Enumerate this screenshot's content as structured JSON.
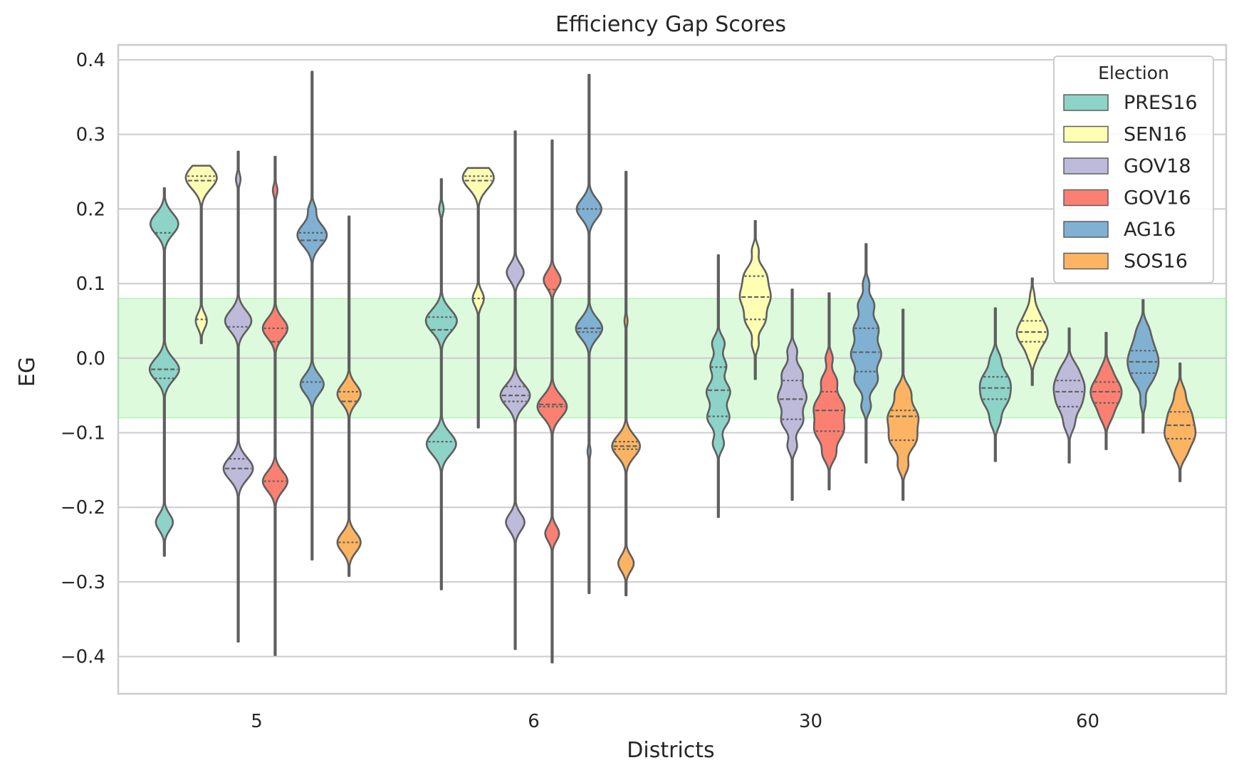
{
  "chart_data": {
    "type": "violin",
    "title": "Efficiency Gap Scores",
    "xlabel": "Districts",
    "ylabel": "EG",
    "categories": [
      "5",
      "6",
      "30",
      "60"
    ],
    "ylim": [
      -0.45,
      0.42
    ],
    "yticks": [
      0.4,
      0.3,
      0.2,
      0.1,
      0.0,
      -0.1,
      -0.2,
      -0.3,
      -0.4
    ],
    "ytick_labels": [
      "0.4",
      "0.3",
      "0.2",
      "0.1",
      "0.0",
      "−0.1",
      "−0.2",
      "−0.3",
      "−0.4"
    ],
    "grid": true,
    "band": {
      "from": -0.08,
      "to": 0.08,
      "color": "#90ee90"
    },
    "legend": {
      "title": "Election",
      "placement": "top-right"
    },
    "series": [
      {
        "name": "PRES16",
        "color": "#8dd3c7",
        "data": [
          {
            "min": -0.265,
            "max": 0.228,
            "modes": [
              [
                0.18,
                0.9
              ],
              [
                -0.015,
                0.95
              ],
              [
                -0.22,
                0.55
              ]
            ],
            "quartiles": [
              -0.027,
              -0.015,
              0.168
            ]
          },
          {
            "min": -0.31,
            "max": 0.24,
            "modes": [
              [
                0.05,
                1.0
              ],
              [
                -0.115,
                0.95
              ],
              [
                0.2,
                0.15
              ]
            ],
            "quartiles": [
              -0.112,
              0.038,
              0.055
            ]
          },
          {
            "min": -0.213,
            "max": 0.138,
            "modes": [
              [
                0.02,
                0.4
              ],
              [
                -0.01,
                0.5
              ],
              [
                -0.045,
                0.75
              ],
              [
                -0.08,
                0.7
              ],
              [
                -0.115,
                0.35
              ]
            ],
            "quartiles": [
              -0.078,
              -0.043,
              -0.012
            ]
          },
          {
            "min": -0.138,
            "max": 0.067,
            "modes": [
              [
                0.0,
                0.4
              ],
              [
                -0.025,
                0.75
              ],
              [
                -0.042,
                0.9
              ],
              [
                -0.06,
                0.7
              ],
              [
                -0.085,
                0.4
              ]
            ],
            "quartiles": [
              -0.055,
              -0.04,
              -0.025
            ]
          }
        ]
      },
      {
        "name": "SEN16",
        "color": "#ffffb3",
        "data": [
          {
            "min": 0.02,
            "max": 0.258,
            "modes": [
              [
                0.242,
                1.25
              ],
              [
                0.05,
                0.45
              ]
            ],
            "quartiles": [
              0.052,
              0.238,
              0.244
            ]
          },
          {
            "min": -0.093,
            "max": 0.255,
            "modes": [
              [
                0.242,
                1.25
              ],
              [
                0.08,
                0.45
              ]
            ],
            "quartiles": [
              0.08,
              0.238,
              0.244
            ]
          },
          {
            "min": -0.028,
            "max": 0.184,
            "modes": [
              [
                0.145,
                0.25
              ],
              [
                0.112,
                0.75
              ],
              [
                0.082,
                1.15
              ],
              [
                0.05,
                0.7
              ],
              [
                0.018,
                0.25
              ]
            ],
            "quartiles": [
              0.052,
              0.082,
              0.11
            ]
          },
          {
            "min": -0.036,
            "max": 0.107,
            "modes": [
              [
                0.085,
                0.25
              ],
              [
                0.062,
                0.6
              ],
              [
                0.04,
                0.85
              ],
              [
                0.035,
                1.1
              ],
              [
                0.02,
                0.8
              ],
              [
                0.0,
                0.35
              ]
            ],
            "quartiles": [
              0.022,
              0.035,
              0.05
            ]
          }
        ]
      },
      {
        "name": "GOV18",
        "color": "#bebada",
        "data": [
          {
            "min": -0.38,
            "max": 0.277,
            "modes": [
              [
                0.05,
                0.85
              ],
              [
                -0.148,
                0.95
              ],
              [
                0.24,
                0.15
              ]
            ],
            "quartiles": [
              -0.135,
              -0.148,
              0.042
            ]
          },
          {
            "min": -0.39,
            "max": 0.304,
            "modes": [
              [
                0.115,
                0.55
              ],
              [
                -0.05,
                0.95
              ],
              [
                -0.22,
                0.6
              ]
            ],
            "quartiles": [
              -0.058,
              -0.05,
              -0.038
            ]
          },
          {
            "min": -0.19,
            "max": 0.092,
            "modes": [
              [
                0.01,
                0.3
              ],
              [
                -0.02,
                0.6
              ],
              [
                -0.052,
                0.9
              ],
              [
                -0.085,
                0.65
              ],
              [
                -0.118,
                0.3
              ]
            ],
            "quartiles": [
              -0.082,
              -0.055,
              -0.03
            ]
          },
          {
            "min": -0.14,
            "max": 0.04,
            "modes": [
              [
                -0.012,
                0.5
              ],
              [
                -0.03,
                0.7
              ],
              [
                -0.045,
                0.9
              ],
              [
                -0.065,
                0.75
              ],
              [
                -0.09,
                0.4
              ]
            ],
            "quartiles": [
              -0.065,
              -0.045,
              -0.03
            ]
          }
        ]
      },
      {
        "name": "GOV16",
        "color": "#fb8072",
        "data": [
          {
            "min": -0.398,
            "max": 0.27,
            "modes": [
              [
                0.04,
                0.8
              ],
              [
                -0.165,
                0.8
              ],
              [
                0.225,
                0.15
              ]
            ],
            "quartiles": [
              -0.165,
              0.022,
              0.04
            ]
          },
          {
            "min": -0.408,
            "max": 0.292,
            "modes": [
              [
                0.105,
                0.55
              ],
              [
                -0.065,
                0.95
              ],
              [
                -0.235,
                0.45
              ]
            ],
            "quartiles": [
              -0.065,
              -0.062,
              0.092
            ]
          },
          {
            "min": -0.176,
            "max": 0.087,
            "modes": [
              [
                0.0,
                0.25
              ],
              [
                -0.03,
                0.5
              ],
              [
                -0.065,
                1.0
              ],
              [
                -0.098,
                0.95
              ],
              [
                -0.13,
                0.4
              ]
            ],
            "quartiles": [
              -0.098,
              -0.07,
              -0.045
            ]
          },
          {
            "min": -0.122,
            "max": 0.034,
            "modes": [
              [
                -0.015,
                0.45
              ],
              [
                -0.035,
                0.7
              ],
              [
                -0.045,
                0.9
              ],
              [
                -0.06,
                0.85
              ],
              [
                -0.08,
                0.4
              ]
            ],
            "quartiles": [
              -0.06,
              -0.045,
              -0.032
            ]
          }
        ]
      },
      {
        "name": "AG16",
        "color": "#80b1d3",
        "data": [
          {
            "min": -0.27,
            "max": 0.384,
            "modes": [
              [
                0.165,
                0.95
              ],
              [
                -0.035,
                0.75
              ],
              [
                0.2,
                0.2
              ]
            ],
            "quartiles": [
              -0.032,
              0.158,
              0.168
            ]
          },
          {
            "min": -0.315,
            "max": 0.38,
            "modes": [
              [
                0.2,
                0.8
              ],
              [
                0.04,
                0.85
              ],
              [
                -0.125,
                0.1
              ]
            ],
            "quartiles": [
              0.035,
              0.04,
              0.2
            ]
          },
          {
            "min": -0.14,
            "max": 0.153,
            "modes": [
              [
                0.1,
                0.2
              ],
              [
                0.072,
                0.5
              ],
              [
                0.04,
                0.75
              ],
              [
                0.005,
                0.95
              ],
              [
                -0.03,
                0.7
              ],
              [
                -0.065,
                0.3
              ]
            ],
            "quartiles": [
              -0.018,
              0.008,
              0.04
            ]
          },
          {
            "min": -0.1,
            "max": 0.078,
            "modes": [
              [
                0.04,
                0.5
              ],
              [
                0.02,
                0.8
              ],
              [
                0.0,
                0.9
              ],
              [
                -0.012,
                0.95
              ],
              [
                -0.03,
                0.65
              ],
              [
                -0.06,
                0.3
              ]
            ],
            "quartiles": [
              -0.02,
              -0.005,
              0.01
            ]
          }
        ]
      },
      {
        "name": "SOS16",
        "color": "#fdb462",
        "data": [
          {
            "min": -0.292,
            "max": 0.19,
            "modes": [
              [
                -0.048,
                0.75
              ],
              [
                -0.247,
                0.75
              ]
            ],
            "quartiles": [
              -0.247,
              -0.058,
              -0.045
            ]
          },
          {
            "min": -0.318,
            "max": 0.25,
            "modes": [
              [
                -0.118,
                0.9
              ],
              [
                -0.275,
                0.5
              ],
              [
                0.05,
                0.1
              ]
            ],
            "quartiles": [
              -0.122,
              -0.118,
              -0.112
            ]
          },
          {
            "min": -0.19,
            "max": 0.065,
            "modes": [
              [
                -0.045,
                0.5
              ],
              [
                -0.078,
                1.05
              ],
              [
                -0.11,
                0.9
              ],
              [
                -0.145,
                0.35
              ]
            ],
            "quartiles": [
              -0.11,
              -0.078,
              -0.07
            ]
          },
          {
            "min": -0.165,
            "max": -0.007,
            "modes": [
              [
                -0.045,
                0.4
              ],
              [
                -0.07,
                0.75
              ],
              [
                -0.093,
                1.0
              ],
              [
                -0.11,
                0.8
              ],
              [
                -0.13,
                0.4
              ]
            ],
            "quartiles": [
              -0.108,
              -0.09,
              -0.072
            ]
          }
        ]
      }
    ]
  }
}
